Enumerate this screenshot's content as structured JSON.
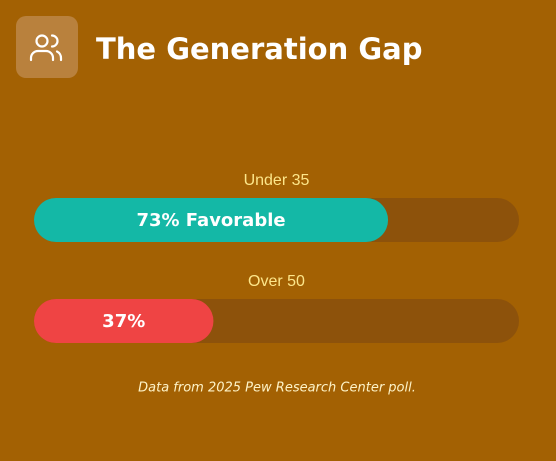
{
  "chart_data": {
    "type": "bar",
    "orientation": "horizontal",
    "title": "The Generation Gap",
    "categories": [
      "Under 35",
      "Over 50"
    ],
    "values": [
      73,
      37
    ],
    "value_labels": [
      "73% Favorable",
      "37%"
    ],
    "colors": [
      "#14b8a6",
      "#ef4444"
    ],
    "xlim": [
      0,
      100
    ],
    "footnote": "Data from 2025 Pew Research Center poll."
  }
}
